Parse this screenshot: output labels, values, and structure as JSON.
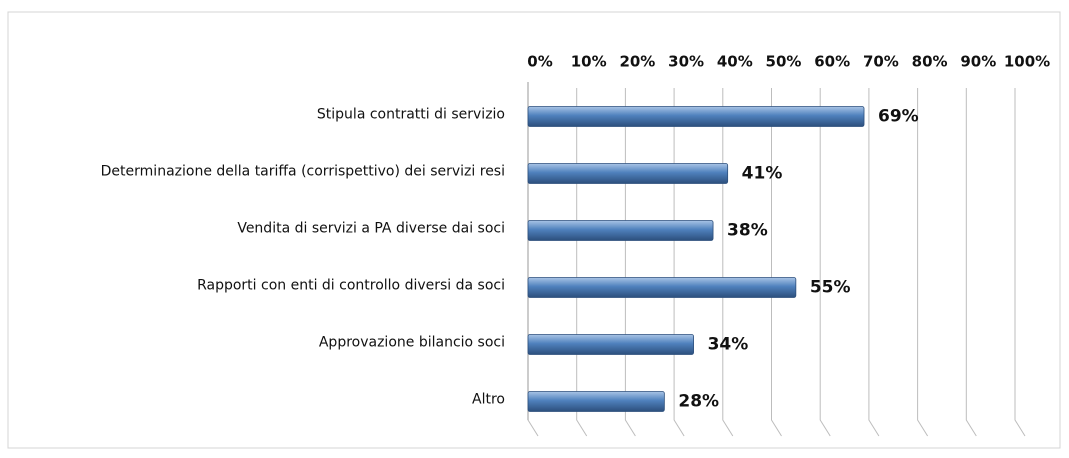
{
  "chart_data": {
    "type": "bar",
    "orientation": "horizontal",
    "categories": [
      "Stipula contratti di servizio",
      "Determinazione della tariffa (corrispettivo) dei servizi resi",
      "Vendita di servizi a PA diverse dai soci",
      "Rapporti con enti di controllo diversi da soci",
      "Approvazione bilancio soci",
      "Altro"
    ],
    "values": [
      69,
      41,
      38,
      55,
      34,
      28
    ],
    "value_labels": [
      "69%",
      "41%",
      "38%",
      "55%",
      "34%",
      "28%"
    ],
    "color": "#4f81bd",
    "xlim": [
      0,
      100
    ],
    "xticks": [
      {
        "value": 0,
        "label": "0%"
      },
      {
        "value": 10,
        "label": "10%"
      },
      {
        "value": 20,
        "label": "20%"
      },
      {
        "value": 30,
        "label": "30%"
      },
      {
        "value": 40,
        "label": "40%"
      },
      {
        "value": 50,
        "label": "50%"
      },
      {
        "value": 60,
        "label": "60%"
      },
      {
        "value": 70,
        "label": "70%"
      },
      {
        "value": 80,
        "label": "80%"
      },
      {
        "value": 90,
        "label": "90%"
      },
      {
        "value": 100,
        "label": "100%"
      }
    ],
    "grid": true
  }
}
